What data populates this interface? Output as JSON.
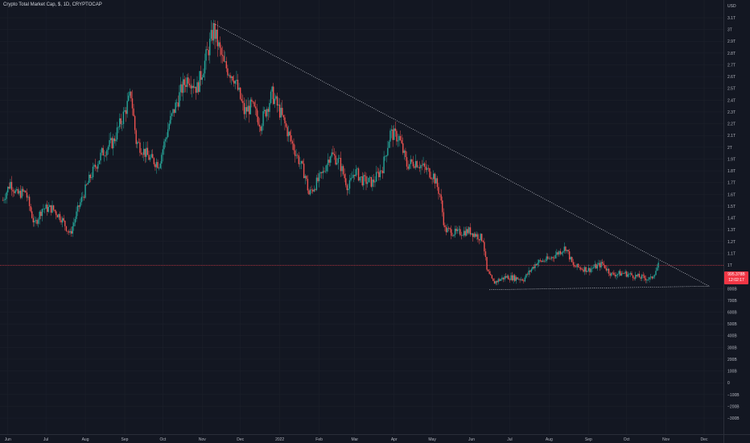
{
  "header": {
    "title": "Crypto Total Market Cap, $, 1D, CRYPTOCAP"
  },
  "price_tag": {
    "value": "995.378B",
    "countdown": "12:02:17"
  },
  "colors": {
    "background": "#131722",
    "up": "#26a69a",
    "down": "#ef5350",
    "price_line": "#f23645",
    "trendline": "#d1d4dc",
    "tick_text": "#b2b5be"
  },
  "chart_data": {
    "type": "candlestick",
    "title": "Crypto Total Market Cap, $, 1D, CRYPTOCAP",
    "y_unit_label": "USD",
    "y_tick_labels": [
      "3.1T",
      "3T",
      "2.9T",
      "2.8T",
      "2.7T",
      "2.6T",
      "2.5T",
      "2.4T",
      "2.3T",
      "2.2T",
      "2.1T",
      "2T",
      "1.9T",
      "1.8T",
      "1.7T",
      "1.6T",
      "1.5T",
      "1.4T",
      "1.3T",
      "1.2T",
      "1.1T",
      "1T",
      "800B",
      "700B",
      "600B",
      "500B",
      "400B",
      "300B",
      "200B",
      "100B",
      "0",
      "−100B",
      "−200B",
      "−300B"
    ],
    "x_tick_labels": [
      "Jun",
      "Jul",
      "Aug",
      "Sep",
      "Oct",
      "Nov",
      "Dec",
      "2022",
      "Feb",
      "Mar",
      "Apr",
      "May",
      "Jun",
      "Jul",
      "Aug",
      "Sep",
      "Oct",
      "Nov",
      "Dec"
    ],
    "ylim": [
      -300,
      3150
    ],
    "grid": true,
    "current_price": 995.378,
    "trendlines": [
      {
        "name": "upper",
        "start": [
          "2021-11-10",
          3050
        ],
        "end": [
          "2022-12-05",
          820
        ]
      },
      {
        "name": "lower",
        "start": [
          "2022-06-15",
          790
        ],
        "end": [
          "2022-12-05",
          820
        ]
      }
    ],
    "path_points": [
      [
        "2021-05-28",
        1550
      ],
      [
        "2021-06-03",
        1700
      ],
      [
        "2021-06-08",
        1600
      ],
      [
        "2021-06-15",
        1620
      ],
      [
        "2021-06-22",
        1340
      ],
      [
        "2021-06-28",
        1480
      ],
      [
        "2021-07-06",
        1480
      ],
      [
        "2021-07-13",
        1400
      ],
      [
        "2021-07-20",
        1260
      ],
      [
        "2021-07-27",
        1500
      ],
      [
        "2021-08-05",
        1750
      ],
      [
        "2021-08-14",
        1950
      ],
      [
        "2021-08-23",
        2050
      ],
      [
        "2021-09-01",
        2300
      ],
      [
        "2021-09-06",
        2450
      ],
      [
        "2021-09-10",
        2050
      ],
      [
        "2021-09-21",
        1900
      ],
      [
        "2021-09-28",
        1860
      ],
      [
        "2021-10-06",
        2200
      ],
      [
        "2021-10-16",
        2500
      ],
      [
        "2021-10-21",
        2600
      ],
      [
        "2021-10-28",
        2500
      ],
      [
        "2021-11-05",
        2800
      ],
      [
        "2021-11-10",
        3000
      ],
      [
        "2021-11-18",
        2700
      ],
      [
        "2021-11-26",
        2600
      ],
      [
        "2021-12-04",
        2300
      ],
      [
        "2021-12-10",
        2350
      ],
      [
        "2021-12-17",
        2200
      ],
      [
        "2021-12-26",
        2450
      ],
      [
        "2022-01-02",
        2280
      ],
      [
        "2022-01-10",
        2050
      ],
      [
        "2022-01-21",
        1760
      ],
      [
        "2022-01-24",
        1600
      ],
      [
        "2022-02-04",
        1780
      ],
      [
        "2022-02-10",
        1950
      ],
      [
        "2022-02-17",
        1870
      ],
      [
        "2022-02-24",
        1650
      ],
      [
        "2022-03-01",
        1800
      ],
      [
        "2022-03-07",
        1720
      ],
      [
        "2022-03-15",
        1700
      ],
      [
        "2022-03-23",
        1830
      ],
      [
        "2022-03-29",
        2120
      ],
      [
        "2022-04-05",
        2080
      ],
      [
        "2022-04-11",
        1850
      ],
      [
        "2022-04-18",
        1880
      ],
      [
        "2022-04-25",
        1820
      ],
      [
        "2022-05-02",
        1760
      ],
      [
        "2022-05-07",
        1600
      ],
      [
        "2022-05-11",
        1300
      ],
      [
        "2022-05-20",
        1270
      ],
      [
        "2022-05-30",
        1290
      ],
      [
        "2022-06-10",
        1220
      ],
      [
        "2022-06-13",
        950
      ],
      [
        "2022-06-18",
        850
      ],
      [
        "2022-06-28",
        900
      ],
      [
        "2022-07-12",
        880
      ],
      [
        "2022-07-22",
        1020
      ],
      [
        "2022-08-01",
        1050
      ],
      [
        "2022-08-14",
        1150
      ],
      [
        "2022-08-20",
        990
      ],
      [
        "2022-09-01",
        960
      ],
      [
        "2022-09-12",
        1010
      ],
      [
        "2022-09-19",
        920
      ],
      [
        "2022-09-29",
        930
      ],
      [
        "2022-10-10",
        900
      ],
      [
        "2022-10-20",
        880
      ],
      [
        "2022-10-26",
        995
      ]
    ]
  }
}
